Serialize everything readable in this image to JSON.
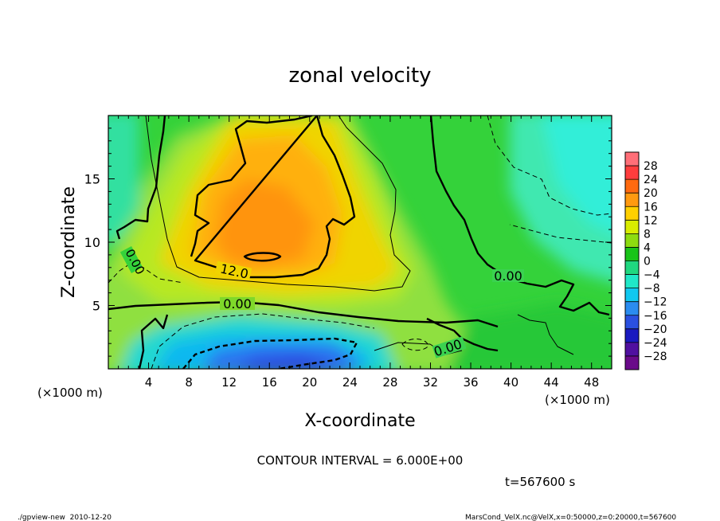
{
  "chart_data": {
    "type": "heatmap",
    "title": "zonal velocity",
    "xlabel": "X-coordinate",
    "ylabel": "Z-coordinate",
    "x_unit": "(×1000 m)",
    "z_unit": "(×1000 m)",
    "xlim": [
      0,
      50
    ],
    "ylim": [
      0,
      20
    ],
    "x_ticks": [
      4,
      8,
      12,
      16,
      20,
      24,
      28,
      32,
      36,
      40,
      44,
      48
    ],
    "y_ticks": [
      5,
      10,
      15
    ],
    "colorbar": {
      "labels": [
        "28",
        "24",
        "20",
        "16",
        "12",
        "8",
        "4",
        "0",
        "−4",
        "−8",
        "−12",
        "−16",
        "−20",
        "−24",
        "−28"
      ],
      "colors": [
        "#ff6f78",
        "#ff3d3d",
        "#ff6a10",
        "#ff9a10",
        "#ffd000",
        "#d9ec00",
        "#8ddc10",
        "#18c418",
        "#20d880",
        "#20e8c8",
        "#10c8f0",
        "#2a8cf0",
        "#2a50e0",
        "#1a1ac0",
        "#5010a0",
        "#6a0a8a"
      ]
    },
    "contour_labels": [
      "0.00",
      "12.0",
      "0.00",
      "0.00",
      "0.00"
    ],
    "contour_interval_text": "CONTOUR INTERVAL = 6.000E+00",
    "time_text": "t=567600 s",
    "footer_left": "./gpview-new  2010-12-20",
    "footer_right": "MarsCond_VelX.nc@VelX,x=0:50000,z=0:20000,t=567600"
  }
}
